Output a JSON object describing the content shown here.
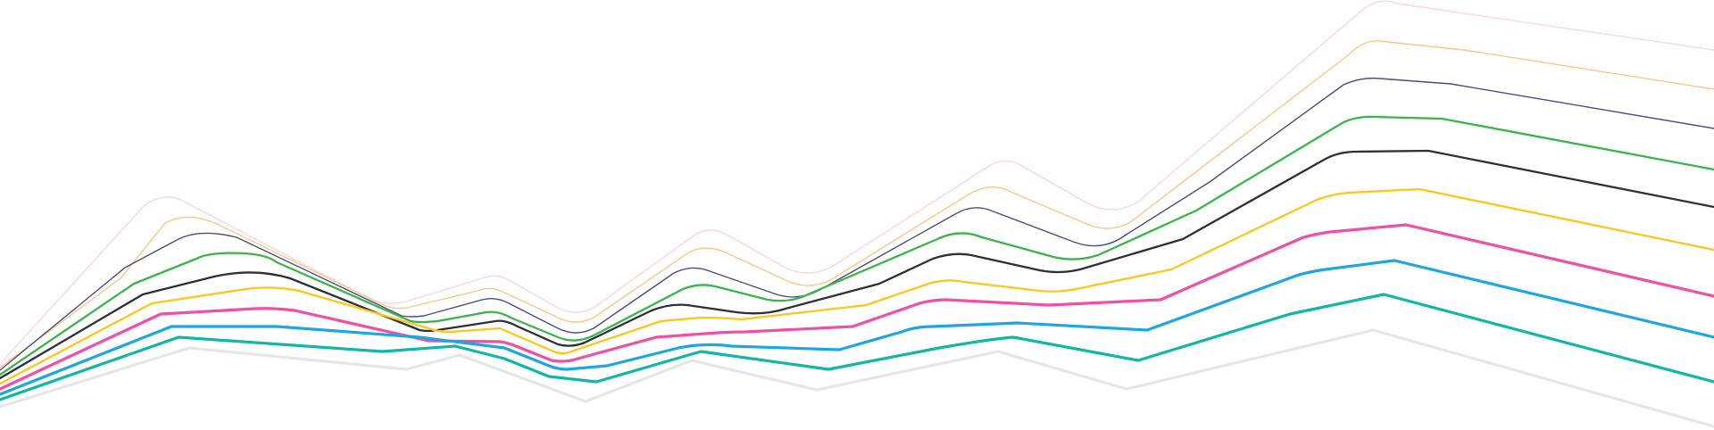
{
  "decoration": {
    "name": "layered-wave-lines",
    "lines": [
      {
        "id": "line-pink-light",
        "color": "#fdd5dc",
        "weight": "thin"
      },
      {
        "id": "line-orange-light",
        "color": "#f8c88a",
        "weight": "thin"
      },
      {
        "id": "line-navy-light",
        "color": "#4a4d80",
        "weight": "thin"
      },
      {
        "id": "line-green",
        "color": "#39b54a",
        "weight": "medium"
      },
      {
        "id": "line-charcoal",
        "color": "#2e2f3a",
        "weight": "medium"
      },
      {
        "id": "line-yellow",
        "color": "#ffc61a",
        "weight": "medium"
      },
      {
        "id": "line-magenta",
        "color": "#ef4fa6",
        "weight": "bold"
      },
      {
        "id": "line-blue",
        "color": "#1ba7e6",
        "weight": "bold"
      },
      {
        "id": "line-teal",
        "color": "#0fb7a5",
        "weight": "bold"
      },
      {
        "id": "line-grey",
        "color": "#e6e6e6",
        "weight": "bold"
      }
    ]
  }
}
